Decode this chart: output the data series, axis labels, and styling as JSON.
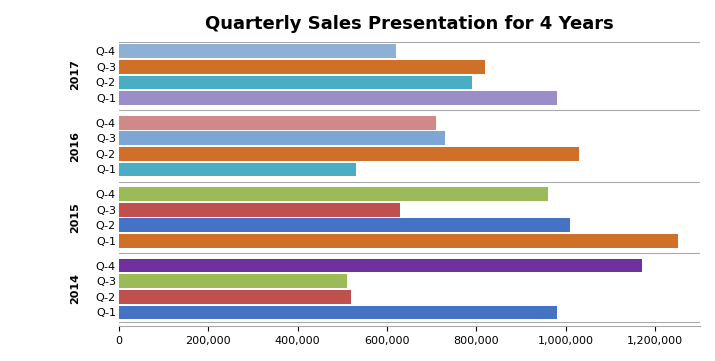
{
  "title": "Quarterly Sales Presentation for 4 Years",
  "years": [
    "2014",
    "2015",
    "2016",
    "2017"
  ],
  "quarters": [
    "Q-1",
    "Q-2",
    "Q-3",
    "Q-4"
  ],
  "values": {
    "2014": [
      980000,
      520000,
      510000,
      1170000
    ],
    "2015": [
      1250000,
      1010000,
      630000,
      960000
    ],
    "2016": [
      530000,
      1030000,
      730000,
      710000
    ],
    "2017": [
      980000,
      790000,
      820000,
      620000
    ]
  },
  "colors": {
    "2014": [
      "#4472C4",
      "#C0504D",
      "#9BBB59",
      "#7030A0"
    ],
    "2015": [
      "#D07028",
      "#4472C4",
      "#C0504D",
      "#9BBB59"
    ],
    "2016": [
      "#4BACC6",
      "#D07028",
      "#7EA6D4",
      "#D08080"
    ],
    "2017": [
      "#8B8FC8",
      "#4BACC6",
      "#D07028",
      "#8B8FC8"
    ]
  },
  "xlim": [
    0,
    1300000
  ],
  "background_color": "#FFFFFF",
  "title_fontsize": 13,
  "tick_fontsize": 8,
  "label_fontsize": 8,
  "year_fontsize": 8
}
